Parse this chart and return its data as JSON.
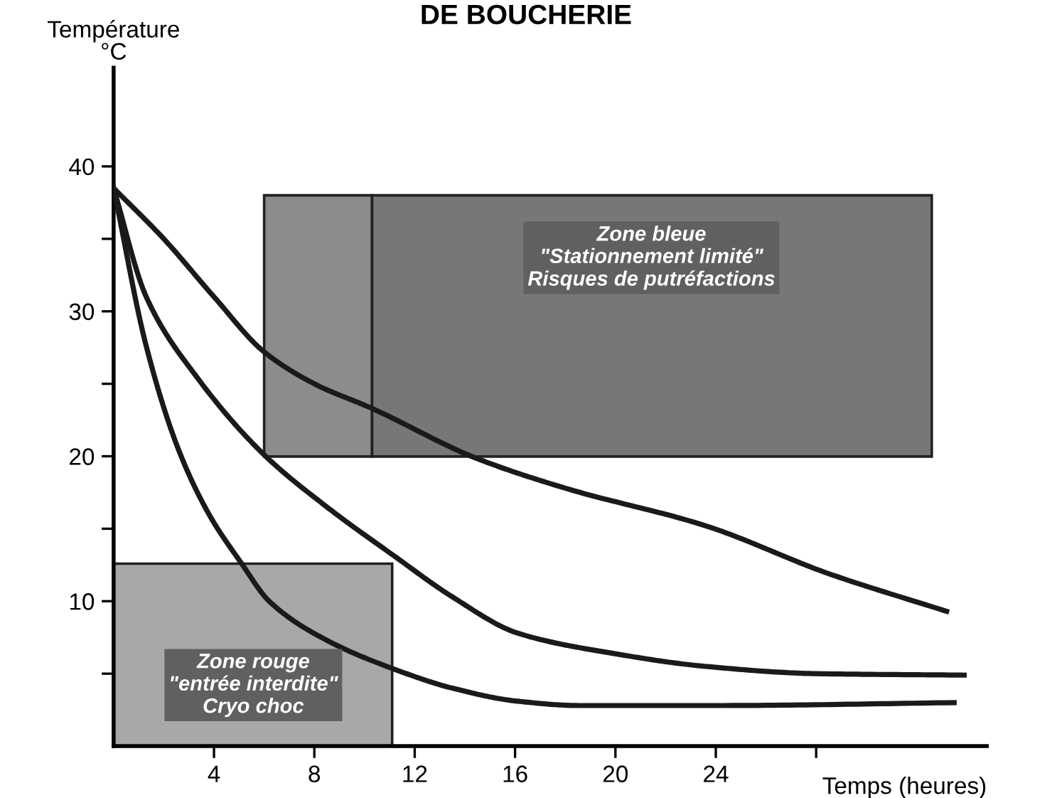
{
  "chart_data": {
    "type": "line",
    "title": "DE BOUCHERIE",
    "ylabel": "Température\n°C",
    "xlabel": "Temps (heures)",
    "series": [
      {
        "color": "#1a1a1a",
        "x": [
          0,
          2,
          4,
          6,
          8,
          10.3,
          14.4,
          18,
          23.6,
          28.5,
          33.2
        ],
        "values": [
          38.5,
          35,
          31,
          27.2,
          25,
          23.3,
          19.9,
          17.8,
          15.2,
          11.9,
          9.3
        ]
      },
      {
        "color": "#1a1a1a",
        "x": [
          0,
          1.3,
          3.3,
          6,
          8.5,
          11.2,
          13.5,
          16.1,
          19.9,
          23.6,
          28,
          33.9
        ],
        "values": [
          38.5,
          31,
          25.5,
          20.1,
          16.5,
          13.1,
          10.3,
          7.8,
          6.4,
          5.5,
          5,
          4.9
        ]
      },
      {
        "color": "#1a1a1a",
        "x": [
          0,
          1.3,
          2.6,
          3.8,
          5.1,
          6.2,
          8.5,
          11.2,
          13.5,
          16.1,
          18.6,
          24,
          33.5
        ],
        "values": [
          38.5,
          27.6,
          20.4,
          16,
          12.6,
          10,
          7.3,
          5.3,
          4,
          3.1,
          2.8,
          2.8,
          3.0
        ]
      }
    ],
    "annotations": [
      "Zone bleue\n\"Stationnement limité\"\nRisques de putréfactions",
      "Zone rouge\n\"entrée interdite\"\nCryo choc"
    ],
    "xlim": [
      0,
      34.8
    ],
    "ylim": [
      0,
      46.8
    ],
    "xticks": [
      4,
      8,
      12,
      16,
      20,
      24,
      {
        "value": 28,
        "label": null
      }
    ],
    "yticks": [
      {
        "value": 5,
        "label": null
      },
      10,
      {
        "value": 15,
        "label": null
      },
      20,
      {
        "value": 25,
        "label": null
      },
      30,
      {
        "value": 35,
        "label": null
      },
      40
    ],
    "grid": false,
    "legend": false,
    "marker": "none",
    "line_style": "solid"
  }
}
